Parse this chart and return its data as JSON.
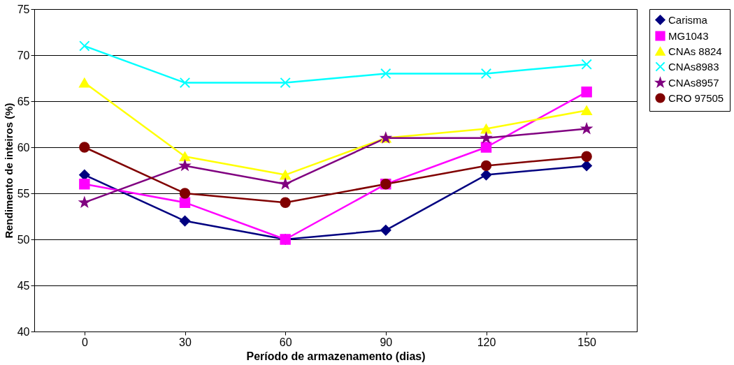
{
  "chart_data": {
    "type": "line",
    "xlabel": "Período de armazenamento (dias)",
    "ylabel": "Rendimento de inteiros (%)",
    "categories": [
      "0",
      "30",
      "60",
      "90",
      "120",
      "150"
    ],
    "ylim": [
      40,
      75
    ],
    "yticks": [
      40,
      45,
      50,
      55,
      60,
      65,
      70,
      75
    ],
    "grid": "y",
    "legend": "right",
    "line_style": "solid",
    "series": [
      {
        "name": "Carisma",
        "color": "#000080",
        "marker": "diamond",
        "values": [
          57,
          52,
          50,
          51,
          57,
          58
        ]
      },
      {
        "name": "MG1043",
        "color": "#ff00ff",
        "marker": "square",
        "values": [
          56,
          54,
          50,
          56,
          60,
          66
        ]
      },
      {
        "name": "CNAs 8824",
        "color": "#ffff00",
        "marker": "triangle",
        "values": [
          67,
          59,
          57,
          61,
          62,
          64
        ]
      },
      {
        "name": "CNAs8983",
        "color": "#00ffff",
        "marker": "cross",
        "values": [
          71,
          67,
          67,
          68,
          68,
          69
        ]
      },
      {
        "name": "CNAs8957",
        "color": "#800080",
        "marker": "star",
        "values": [
          54,
          58,
          56,
          61,
          61,
          62
        ]
      },
      {
        "name": "CRO 97505",
        "color": "#800000",
        "marker": "circle",
        "values": [
          60,
          55,
          54,
          56,
          58,
          59
        ]
      }
    ]
  }
}
